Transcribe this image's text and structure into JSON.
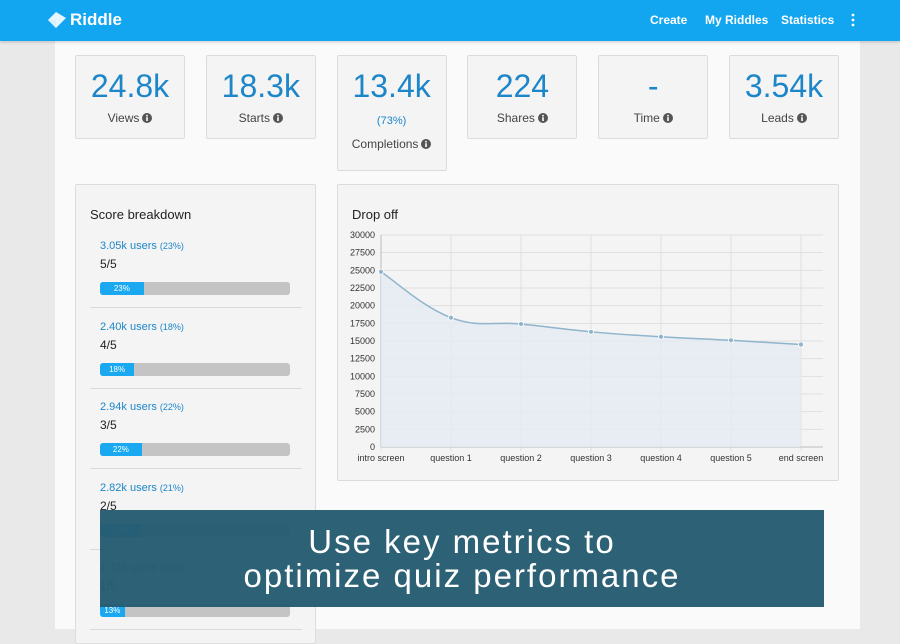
{
  "header": {
    "logo": "Riddle",
    "nav": [
      "Create",
      "My Riddles",
      "Statistics"
    ]
  },
  "metrics": [
    {
      "value": "24.8k",
      "label": "Views"
    },
    {
      "value": "18.3k",
      "label": "Starts"
    },
    {
      "value": "13.4k",
      "extra": "(73%)",
      "label": "Completions"
    },
    {
      "value": "224",
      "label": "Shares"
    },
    {
      "value": "-",
      "label": "Time"
    },
    {
      "value": "3.54k",
      "label": "Leads"
    }
  ],
  "score_breakdown": {
    "title": "Score breakdown",
    "items": [
      {
        "users": "3.05k users",
        "share": "(23%)",
        "score": "5/5",
        "bar_percent": 23,
        "bar_label": "23%"
      },
      {
        "users": "2.40k users",
        "share": "(18%)",
        "score": "4/5",
        "bar_percent": 18,
        "bar_label": "18%"
      },
      {
        "users": "2.94k users",
        "share": "(22%)",
        "score": "3/5",
        "bar_percent": 22,
        "bar_label": "22%"
      },
      {
        "users": "2.82k users",
        "share": "(21%)",
        "score": "2/5",
        "bar_percent": 21,
        "bar_label": "21%"
      },
      {
        "users": "1.72k users",
        "share": "(13%)",
        "score": "1/5",
        "bar_percent": 13,
        "bar_label": "13%"
      }
    ]
  },
  "chart_data": {
    "type": "line",
    "title": "Drop off",
    "categories": [
      "intro screen",
      "question 1",
      "question 2",
      "question 3",
      "question 4",
      "question 5",
      "end screen"
    ],
    "values": [
      24800,
      18300,
      17400,
      16300,
      15600,
      15100,
      14500
    ],
    "color": "#8fb4cc",
    "fill": "#e3ebf2",
    "ylim": [
      0,
      30000
    ],
    "yticks": [
      0,
      2500,
      5000,
      7500,
      10000,
      12500,
      15000,
      17500,
      20000,
      22500,
      25000,
      27500,
      30000
    ],
    "grid": true
  },
  "banner": {
    "lines": [
      "Use key metrics to",
      "optimize quiz performance"
    ]
  }
}
